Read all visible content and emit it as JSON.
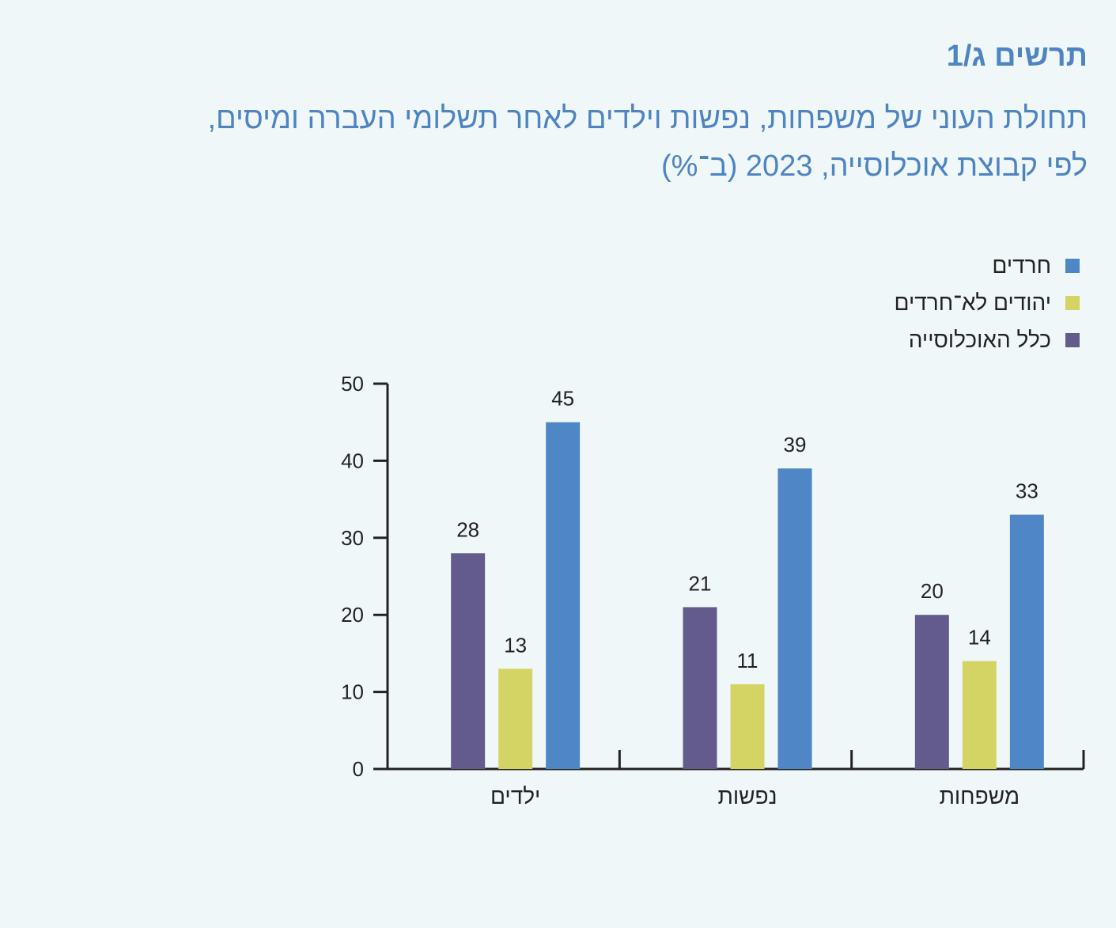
{
  "figure_number": "תרשים ג/1",
  "title_line1": "תחולת העוני של משפחות, נפשות וילדים לאחר תשלומי העברה ומיסים,",
  "title_line2": "לפי קבוצת אוכלוסייה, 2023 (ב־%)",
  "colors": {
    "background": "#f0f7f9",
    "title": "#4e84c2",
    "axis": "#222222"
  },
  "chart_data": {
    "type": "bar",
    "title": "תחולת העוני של משפחות, נפשות וילדים לאחר תשלומי העברה ומיסים, לפי קבוצת אוכלוסייה, 2023 (ב־%)",
    "xlabel": "",
    "ylabel": "",
    "ylim": [
      0,
      50
    ],
    "yticks": [
      0,
      10,
      20,
      30,
      40,
      50
    ],
    "grid": false,
    "legend_position": "top-right",
    "direction": "rtl",
    "categories": [
      "משפחות",
      "נפשות",
      "ילדים"
    ],
    "series": [
      {
        "name": "חרדים",
        "color": "#4e86c6",
        "values": [
          33,
          39,
          45
        ]
      },
      {
        "name": "יהודים לא־חרדים",
        "color": "#d4d464",
        "values": [
          14,
          11,
          13
        ]
      },
      {
        "name": "כלל האוכלוסייה",
        "color": "#635b8c",
        "values": [
          20,
          21,
          28
        ]
      }
    ]
  }
}
